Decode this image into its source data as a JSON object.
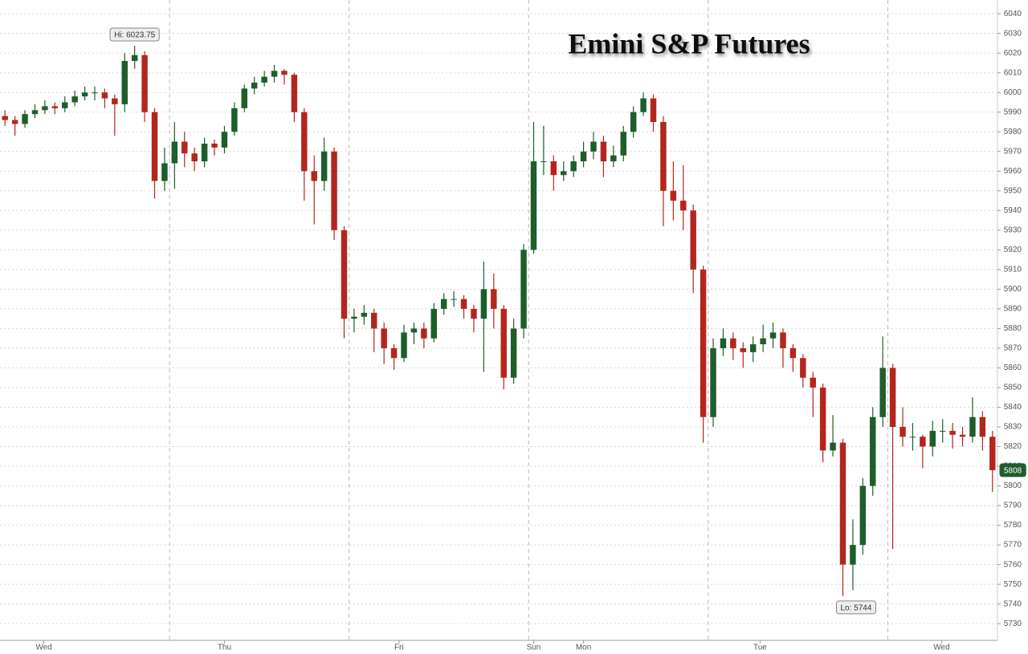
{
  "chart_data": {
    "type": "candlestick",
    "title": "Emini S&P Futures",
    "up_color": "#1d5e2b",
    "down_color": "#b3261e",
    "xlim": [
      -0.5,
      99.5
    ],
    "xticks": [
      {
        "value": 3.9,
        "label": "Wed"
      },
      {
        "value": 22,
        "label": "Thu"
      },
      {
        "value": 39.5,
        "label": "Fri"
      },
      {
        "value": 53,
        "label": "Sun"
      },
      {
        "value": 58,
        "label": "Mon"
      },
      {
        "value": 75.7,
        "label": "Tue"
      },
      {
        "value": 93.9,
        "label": "Wed"
      }
    ],
    "session_breaks": [
      16.5,
      34.5,
      52.5,
      70.5,
      88.5
    ],
    "ylim": [
      5721.5,
      6047
    ],
    "yticks": [
      5730,
      5740,
      5750,
      5760,
      5770,
      5780,
      5790,
      5800,
      5810,
      5820,
      5830,
      5840,
      5850,
      5860,
      5870,
      5880,
      5890,
      5900,
      5910,
      5920,
      5930,
      5940,
      5950,
      5960,
      5970,
      5980,
      5990,
      6000,
      6010,
      6020,
      6030,
      6040
    ],
    "grid": true,
    "hi_label": "Hi: 6023.75",
    "lo_label": "Lo: 5744",
    "last_label": "5808",
    "x": [
      0,
      1,
      2,
      3,
      4,
      5,
      6,
      7,
      8,
      9,
      10,
      11,
      12,
      13,
      14,
      15,
      16,
      17,
      18,
      19,
      20,
      21,
      22,
      23,
      24,
      25,
      26,
      27,
      28,
      29,
      30,
      31,
      32,
      33,
      34,
      35,
      36,
      37,
      38,
      39,
      40,
      41,
      42,
      43,
      44,
      45,
      46,
      47,
      48,
      49,
      50,
      51,
      52,
      53,
      54,
      55,
      56,
      57,
      58,
      59,
      60,
      61,
      62,
      63,
      64,
      65,
      66,
      67,
      68,
      69,
      70,
      71,
      72,
      73,
      74,
      75,
      76,
      77,
      78,
      79,
      80,
      81,
      82,
      83,
      84,
      85,
      86,
      87,
      88,
      89,
      90,
      91,
      92,
      93,
      94,
      95,
      96,
      97,
      98,
      99
    ],
    "open": [
      5988,
      5986,
      5984,
      5989,
      5991,
      5993,
      5992,
      5995,
      5998,
      6000,
      6000,
      5997,
      5994,
      6016,
      6019,
      5990,
      5955,
      5964,
      5975,
      5969,
      5965,
      5974,
      5972,
      5980,
      5992,
      6002,
      6005,
      6008,
      6011,
      6009,
      5990,
      5960,
      5955,
      5970,
      5930,
      5885,
      5886,
      5888,
      5880,
      5870,
      5865,
      5878,
      5880,
      5875,
      5890,
      5895,
      5895,
      5890,
      5885,
      5900,
      5890,
      5855,
      5880,
      5920,
      5965,
      5965,
      5958,
      5960,
      5965,
      5970,
      5975,
      5965,
      5968,
      5980,
      5990,
      5997,
      5985,
      5950,
      5945,
      5940,
      5910,
      5835,
      5870,
      5875,
      5870,
      5868,
      5872,
      5875,
      5878,
      5870,
      5865,
      5855,
      5850,
      5818,
      5822,
      5760,
      5770,
      5800,
      5835,
      5860,
      5830,
      5825,
      5825,
      5820,
      5828,
      5828,
      5826,
      5825,
      5835,
      5825
    ],
    "high": [
      5991,
      5988,
      5991,
      5994,
      5996,
      5995,
      5998,
      6001,
      6003,
      6003,
      6002,
      5999,
      6020,
      6023.75,
      6021,
      5992,
      5972,
      5985,
      5980,
      5972,
      5977,
      5976,
      5983,
      5995,
      6004,
      6008,
      6011,
      6014,
      6012,
      6010,
      5992,
      5968,
      5977,
      5972,
      5932,
      5890,
      5892,
      5890,
      5883,
      5872,
      5882,
      5883,
      5883,
      5893,
      5898,
      5899,
      5897,
      5892,
      5914,
      5908,
      5892,
      5885,
      5923,
      5985,
      5983,
      5968,
      5965,
      5968,
      5975,
      5980,
      5978,
      5973,
      5983,
      5993,
      6000,
      5999,
      5988,
      5965,
      5963,
      5943,
      5912,
      5875,
      5880,
      5878,
      5873,
      5876,
      5882,
      5883,
      5880,
      5872,
      5867,
      5858,
      5852,
      5836,
      5824,
      5783,
      5804,
      5840,
      5876,
      5862,
      5840,
      5832,
      5826,
      5833,
      5834,
      5832,
      5830,
      5845,
      5838,
      5828
    ],
    "low": [
      5983,
      5978,
      5982,
      5987,
      5989,
      5989,
      5990,
      5993,
      5996,
      5996,
      5992,
      5978,
      5990,
      6012,
      5985,
      5946,
      5950,
      5951,
      5962,
      5960,
      5962,
      5968,
      5969,
      5978,
      5990,
      5999,
      6003,
      6005,
      6004,
      5985,
      5945,
      5933,
      5950,
      5925,
      5875,
      5878,
      5882,
      5868,
      5862,
      5859,
      5863,
      5872,
      5870,
      5873,
      5887,
      5891,
      5885,
      5878,
      5858,
      5880,
      5849,
      5852,
      5875,
      5918,
      5958,
      5950,
      5955,
      5957,
      5962,
      5966,
      5957,
      5962,
      5965,
      5977,
      5988,
      5980,
      5932,
      5935,
      5930,
      5898,
      5822,
      5830,
      5866,
      5864,
      5860,
      5863,
      5868,
      5870,
      5860,
      5858,
      5850,
      5835,
      5812,
      5815,
      5744,
      5747,
      5765,
      5795,
      5830,
      5768,
      5820,
      5818,
      5809,
      5815,
      5822,
      5819,
      5820,
      5822,
      5818,
      5797
    ],
    "close": [
      5986,
      5984,
      5989,
      5991,
      5993,
      5992,
      5995,
      5998,
      6000,
      6000,
      5997,
      5994,
      6016,
      6019,
      5990,
      5955,
      5964,
      5975,
      5969,
      5965,
      5974,
      5972,
      5980,
      5992,
      6002,
      6005,
      6008,
      6011,
      6009,
      5990,
      5960,
      5955,
      5970,
      5930,
      5885,
      5886,
      5888,
      5880,
      5870,
      5865,
      5878,
      5880,
      5875,
      5890,
      5895,
      5895,
      5890,
      5885,
      5900,
      5890,
      5855,
      5880,
      5920,
      5965,
      5965,
      5958,
      5960,
      5965,
      5970,
      5975,
      5965,
      5968,
      5980,
      5990,
      5997,
      5985,
      5950,
      5945,
      5940,
      5910,
      5835,
      5870,
      5875,
      5870,
      5868,
      5872,
      5875,
      5878,
      5870,
      5865,
      5855,
      5850,
      5818,
      5822,
      5760,
      5770,
      5800,
      5835,
      5860,
      5830,
      5825,
      5825,
      5820,
      5828,
      5828,
      5826,
      5825,
      5835,
      5825,
      5808
    ]
  }
}
